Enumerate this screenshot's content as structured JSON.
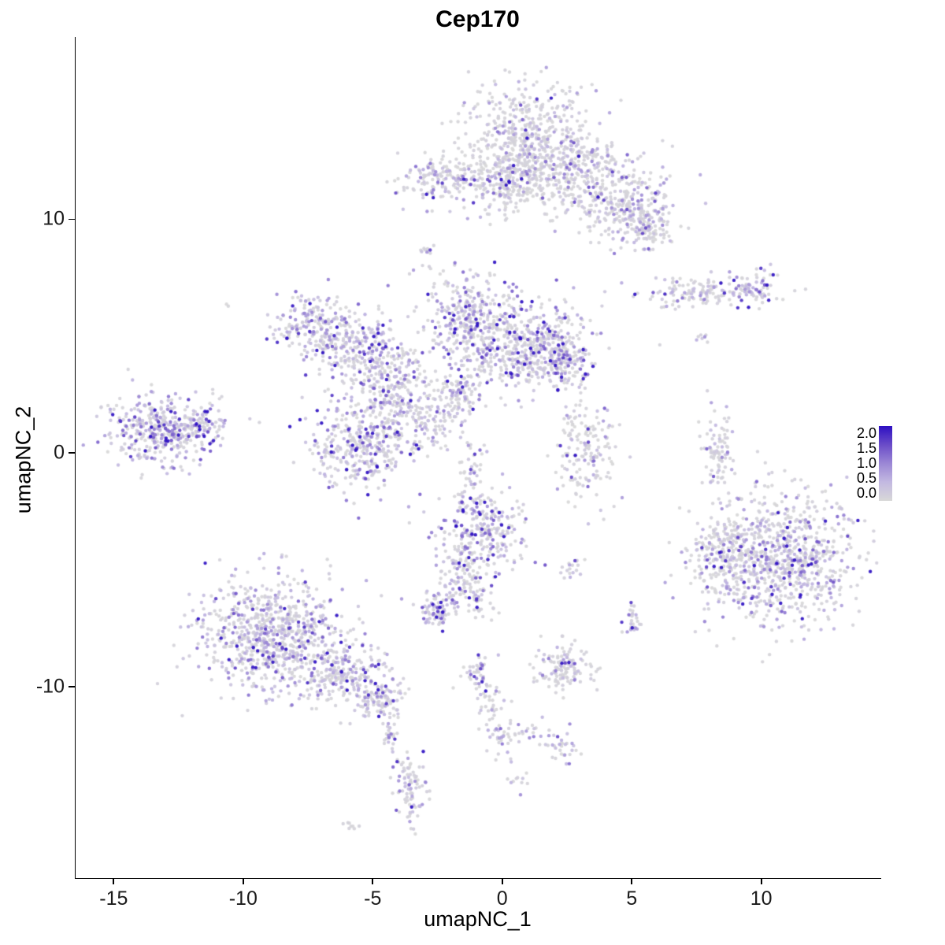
{
  "chart_data": {
    "type": "scatter",
    "title": "Cep170",
    "xlabel": "umapNC_1",
    "ylabel": "umapNC_2",
    "xlim": [
      -16.5,
      14.6
    ],
    "ylim": [
      -18.2,
      17.8
    ],
    "x_ticks": [
      -15,
      -10,
      -5,
      0,
      5,
      10
    ],
    "y_ticks": [
      -10,
      0,
      10
    ],
    "grid": false,
    "legend": {
      "position": "right",
      "ticks": [
        "2.0",
        "1.5",
        "1.0",
        "0.5",
        "0.0"
      ],
      "value_range": [
        0.0,
        2.0
      ]
    },
    "color_scale_stops": [
      [
        0.0,
        "#d8d8d8"
      ],
      [
        0.25,
        "#c3b9e1"
      ],
      [
        0.5,
        "#9b87d5"
      ],
      [
        0.75,
        "#6a4cc8"
      ],
      [
        1.0,
        "#2e10c2"
      ]
    ],
    "point_style": {
      "radius": 2.2,
      "alpha": 0.92
    },
    "cluster_fields": [
      "x_center",
      "y_center",
      "x_spread",
      "y_spread",
      "n_points",
      "frac_zero_expr",
      "mean_expr"
    ],
    "clusters": [
      [
        -2.4,
        11.7,
        0.9,
        0.55,
        150,
        0.45,
        0.55
      ],
      [
        -2.9,
        8.6,
        0.18,
        0.3,
        12,
        0.5,
        0.5
      ],
      [
        0.9,
        13.6,
        1.2,
        1.1,
        450,
        0.6,
        0.45
      ],
      [
        2.4,
        12.1,
        1.4,
        0.9,
        350,
        0.6,
        0.45
      ],
      [
        0.1,
        11.6,
        0.9,
        0.7,
        200,
        0.55,
        0.5
      ],
      [
        4.6,
        10.5,
        1.0,
        0.8,
        260,
        0.5,
        0.6
      ],
      [
        5.6,
        9.6,
        0.5,
        0.5,
        90,
        0.45,
        0.7
      ],
      [
        7.6,
        6.9,
        1.3,
        0.33,
        130,
        0.5,
        0.5
      ],
      [
        9.6,
        7.0,
        0.45,
        0.4,
        70,
        0.3,
        0.8
      ],
      [
        7.7,
        4.85,
        0.15,
        0.2,
        7,
        0.6,
        0.4
      ],
      [
        -7.3,
        5.6,
        0.75,
        0.6,
        170,
        0.35,
        0.6
      ],
      [
        -5.8,
        4.5,
        0.8,
        0.75,
        200,
        0.35,
        0.6
      ],
      [
        -4.4,
        3.3,
        0.75,
        0.95,
        230,
        0.4,
        0.6
      ],
      [
        -1.3,
        5.9,
        0.85,
        0.95,
        260,
        0.4,
        0.6
      ],
      [
        0.6,
        4.6,
        1.4,
        0.95,
        520,
        0.35,
        0.65
      ],
      [
        2.3,
        4.1,
        0.6,
        0.55,
        150,
        0.3,
        0.75
      ],
      [
        -5.4,
        0.4,
        1.0,
        1.0,
        380,
        0.35,
        0.7
      ],
      [
        -3.0,
        1.6,
        0.8,
        0.8,
        150,
        0.45,
        0.55
      ],
      [
        -1.6,
        2.6,
        0.5,
        0.6,
        80,
        0.4,
        0.6
      ],
      [
        -1.1,
        -0.6,
        0.3,
        0.5,
        30,
        0.5,
        0.5
      ],
      [
        -13.2,
        0.9,
        1.0,
        0.7,
        380,
        0.3,
        0.7
      ],
      [
        -11.6,
        1.4,
        0.5,
        0.5,
        80,
        0.35,
        0.65
      ],
      [
        -10.6,
        6.3,
        0.08,
        0.08,
        2,
        0.8,
        0.3
      ],
      [
        3.2,
        0.1,
        0.65,
        1.0,
        160,
        0.5,
        0.55
      ],
      [
        8.3,
        -0.1,
        0.3,
        1.0,
        90,
        0.6,
        0.45
      ],
      [
        10.7,
        -4.5,
        1.5,
        1.35,
        850,
        0.45,
        0.6
      ],
      [
        8.5,
        -4.3,
        0.55,
        0.9,
        160,
        0.45,
        0.6
      ],
      [
        -0.8,
        -3.3,
        0.8,
        0.95,
        300,
        0.35,
        0.65
      ],
      [
        -1.7,
        -5.4,
        0.45,
        0.7,
        90,
        0.4,
        0.6
      ],
      [
        -2.6,
        -6.7,
        0.4,
        0.35,
        80,
        0.3,
        0.75
      ],
      [
        -0.9,
        -6.2,
        0.3,
        0.4,
        40,
        0.45,
        0.5
      ],
      [
        2.6,
        -4.85,
        0.3,
        0.18,
        18,
        0.55,
        0.5
      ],
      [
        -8.9,
        -7.8,
        1.35,
        1.15,
        780,
        0.35,
        0.6
      ],
      [
        -6.2,
        -9.6,
        0.9,
        0.65,
        240,
        0.4,
        0.55
      ],
      [
        -4.7,
        -10.6,
        0.45,
        0.4,
        90,
        0.4,
        0.6
      ],
      [
        -4.4,
        -12.0,
        0.2,
        0.35,
        25,
        0.45,
        0.55
      ],
      [
        -3.6,
        -14.3,
        0.3,
        0.75,
        90,
        0.35,
        0.65
      ],
      [
        -5.9,
        -15.9,
        0.2,
        0.15,
        8,
        0.7,
        0.3
      ],
      [
        5.0,
        -7.1,
        0.22,
        0.3,
        28,
        0.5,
        0.6
      ],
      [
        2.4,
        -9.2,
        0.55,
        0.5,
        130,
        0.6,
        0.45
      ],
      [
        -1.0,
        -9.4,
        0.35,
        0.4,
        45,
        0.45,
        0.55
      ],
      [
        -0.4,
        -10.9,
        0.3,
        0.5,
        35,
        0.45,
        0.55
      ],
      [
        0.1,
        -12.3,
        0.35,
        0.4,
        35,
        0.45,
        0.55
      ],
      [
        2.3,
        -12.5,
        0.3,
        0.35,
        30,
        0.4,
        0.6
      ],
      [
        1.2,
        -12.0,
        0.3,
        0.25,
        15,
        0.5,
        0.5
      ],
      [
        0.6,
        -14.0,
        0.2,
        0.2,
        10,
        0.5,
        0.5
      ]
    ]
  }
}
